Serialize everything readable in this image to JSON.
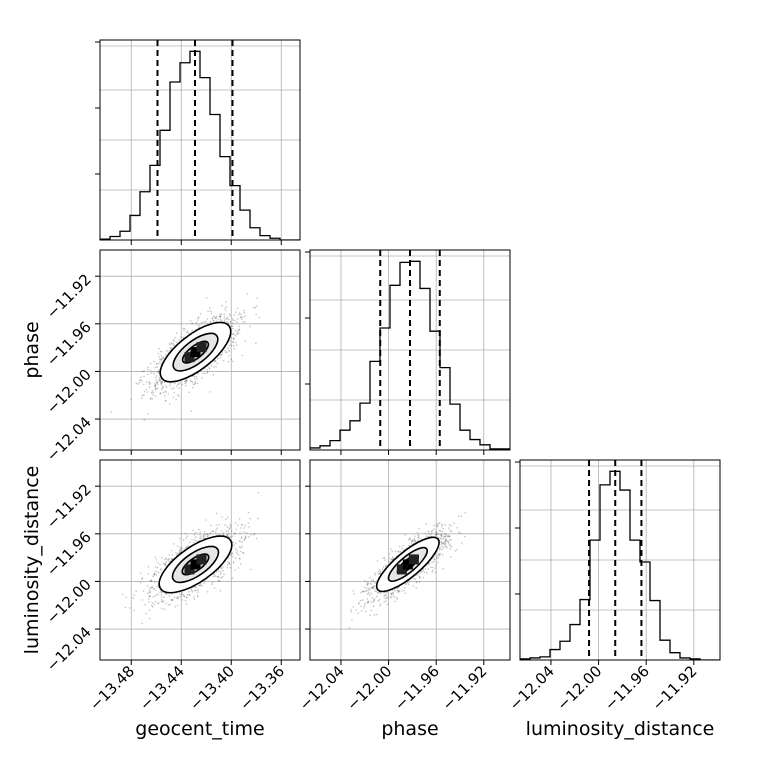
{
  "chart_data": {
    "type": "corner",
    "parameters": [
      "geocent_time",
      "phase",
      "luminosity_distance"
    ],
    "ranges": {
      "geocent_time": [
        -13.505,
        -13.345
      ],
      "phase": [
        -12.066,
        -11.898
      ],
      "luminosity_distance": [
        -12.066,
        -11.898
      ]
    },
    "ticks": {
      "geocent_time": [
        -13.48,
        -13.44,
        -13.4,
        -13.36
      ],
      "phase": [
        -12.04,
        -12.0,
        -11.96,
        -11.92
      ],
      "luminosity_distance": [
        -12.04,
        -12.0,
        -11.96,
        -11.92
      ]
    },
    "tick_labels": {
      "geocent_time": [
        "−13.48",
        "−13.44",
        "−13.40",
        "−13.36"
      ],
      "phase": [
        "−12.04",
        "−12.00",
        "−11.96",
        "−11.92"
      ],
      "luminosity_distance": [
        "−12.04",
        "−12.00",
        "−11.96",
        "−11.92"
      ]
    },
    "xlabels": [
      "geocent_time",
      "phase",
      "luminosity_distance"
    ],
    "ylabels": [
      "",
      "phase",
      "luminosity_distance"
    ],
    "grid": true,
    "histograms": [
      {
        "parameter": "geocent_time",
        "bin_edges": [
          -13.505,
          -13.497,
          -13.489,
          -13.481,
          -13.473,
          -13.465,
          -13.457,
          -13.449,
          -13.441,
          -13.433,
          -13.425,
          -13.417,
          -13.409,
          -13.401,
          -13.393,
          -13.385,
          -13.377,
          -13.369,
          -13.361,
          -13.353,
          -13.345
        ],
        "counts": [
          1,
          4,
          10,
          28,
          55,
          85,
          125,
          180,
          202,
          215,
          185,
          143,
          95,
          62,
          34,
          14,
          5,
          2,
          0,
          0
        ],
        "quantiles": [
          -13.459,
          -13.429,
          -13.399
        ]
      },
      {
        "parameter": "phase",
        "bin_edges": [
          -12.066,
          -12.0576,
          -12.0492,
          -12.0408,
          -12.0324,
          -12.024,
          -12.0156,
          -12.0072,
          -11.9988,
          -11.9904,
          -11.982,
          -11.9736,
          -11.9652,
          -11.9568,
          -11.9484,
          -11.94,
          -11.9316,
          -11.9232,
          -11.9148,
          -11.9064,
          -11.898
        ],
        "counts": [
          2,
          4,
          9,
          19,
          28,
          45,
          85,
          117,
          158,
          180,
          181,
          155,
          114,
          79,
          44,
          19,
          10,
          5,
          1,
          1
        ],
        "quantiles": [
          -12.007,
          -11.982,
          -11.957
        ]
      },
      {
        "parameter": "luminosity_distance",
        "bin_edges": [
          -12.066,
          -12.0576,
          -12.0492,
          -12.0408,
          -12.0324,
          -12.024,
          -12.0156,
          -12.0072,
          -11.9988,
          -11.9904,
          -11.982,
          -11.9736,
          -11.9652,
          -11.9568,
          -11.9484,
          -11.94,
          -11.9316,
          -11.9232,
          -11.9148,
          -11.9064,
          -11.898
        ],
        "counts": [
          1,
          2,
          3,
          10,
          18,
          34,
          58,
          115,
          168,
          181,
          163,
          115,
          94,
          57,
          19,
          7,
          2,
          1,
          0,
          0
        ],
        "quantiles": [
          -12.008,
          -11.986,
          -11.964
        ]
      }
    ],
    "joint_distributions": [
      {
        "x": "geocent_time",
        "y": "phase",
        "mean": [
          -13.4286,
          -11.9838
        ],
        "major_axis_angle_deg": 38,
        "contour_semi_axes": [
          [
            0.0055,
            0.0022
          ],
          [
            0.0125,
            0.005
          ],
          [
            0.0215,
            0.009
          ],
          [
            0.034,
            0.014
          ]
        ],
        "scatter_spread": [
          0.033,
          0.0135
        ]
      },
      {
        "x": "geocent_time",
        "y": "luminosity_distance",
        "mean": [
          -13.4286,
          -11.9857
        ],
        "major_axis_angle_deg": 35,
        "contour_semi_axes": [
          [
            0.0055,
            0.0022
          ],
          [
            0.0125,
            0.005
          ],
          [
            0.0215,
            0.009
          ],
          [
            0.034,
            0.014
          ]
        ],
        "scatter_spread": [
          0.033,
          0.0135
        ]
      },
      {
        "x": "phase",
        "y": "luminosity_distance",
        "mean": [
          -11.9838,
          -11.9857
        ],
        "major_axis_angle_deg": 40,
        "contour_semi_axes": [
          [
            0.005,
            0.0016
          ],
          [
            0.011,
            0.0036
          ],
          [
            0.0205,
            0.0065
          ],
          [
            0.033,
            0.0105
          ]
        ],
        "scatter_spread": [
          0.032,
          0.01
        ]
      }
    ]
  }
}
